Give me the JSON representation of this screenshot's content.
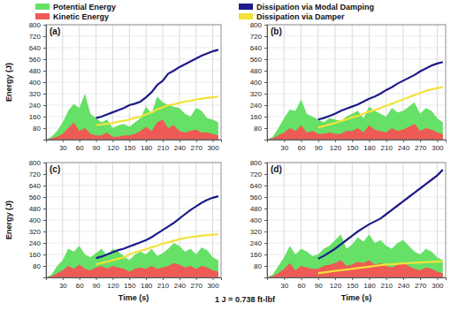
{
  "footnote": "1 J = 0.738 ft-lbf",
  "chart_data": [
    {
      "type": "line",
      "title": "(a)",
      "legend": "top",
      "grid": true,
      "y_label": "Energy (J)",
      "x": [
        0,
        10,
        20,
        30,
        40,
        50,
        60,
        70,
        80,
        90,
        100,
        110,
        120,
        130,
        140,
        150,
        160,
        170,
        180,
        190,
        200,
        210,
        220,
        230,
        240,
        250,
        260,
        270,
        280,
        290,
        300,
        310
      ],
      "xlim": [
        0,
        315
      ],
      "ylim": [
        0,
        800
      ],
      "xticks": [
        30,
        60,
        90,
        120,
        150,
        180,
        210,
        240,
        270,
        300
      ],
      "yticks": [
        80,
        160,
        240,
        320,
        400,
        480,
        560,
        640,
        720,
        800
      ],
      "series": [
        {
          "name": "Potential Energy",
          "type": "area",
          "color": "#66e066",
          "values": [
            0,
            20,
            60,
            120,
            200,
            250,
            220,
            320,
            180,
            150,
            120,
            140,
            80,
            100,
            110,
            90,
            120,
            150,
            230,
            180,
            300,
            260,
            240,
            230,
            220,
            180,
            160,
            220,
            200,
            150,
            140,
            120
          ]
        },
        {
          "name": "Kinetic Energy",
          "type": "area",
          "color": "#ee5a55",
          "values": [
            0,
            10,
            20,
            40,
            80,
            120,
            60,
            80,
            40,
            30,
            30,
            50,
            20,
            20,
            30,
            30,
            40,
            60,
            90,
            60,
            120,
            140,
            80,
            100,
            60,
            50,
            60,
            70,
            50,
            50,
            40,
            30
          ]
        },
        {
          "name": "Dissipation via Modal Damping",
          "type": "line",
          "color": "#1c1c8a",
          "values": [
            null,
            null,
            null,
            null,
            null,
            null,
            null,
            null,
            null,
            150,
            160,
            175,
            190,
            205,
            220,
            240,
            250,
            265,
            295,
            330,
            380,
            410,
            460,
            480,
            505,
            525,
            545,
            565,
            585,
            600,
            615,
            625
          ]
        },
        {
          "name": "Dissipation via Damper",
          "type": "line",
          "color": "#f2e23a",
          "values": [
            null,
            null,
            null,
            null,
            null,
            null,
            null,
            null,
            null,
            100,
            105,
            110,
            115,
            125,
            130,
            140,
            150,
            160,
            175,
            190,
            210,
            225,
            240,
            245,
            255,
            265,
            270,
            280,
            285,
            290,
            295,
            300
          ]
        }
      ]
    },
    {
      "type": "line",
      "title": "(b)",
      "grid": true,
      "x": [
        0,
        10,
        20,
        30,
        40,
        50,
        60,
        70,
        80,
        90,
        100,
        110,
        120,
        130,
        140,
        150,
        160,
        170,
        180,
        190,
        200,
        210,
        220,
        230,
        240,
        250,
        260,
        270,
        280,
        290,
        300,
        310
      ],
      "xlim": [
        0,
        315
      ],
      "ylim": [
        0,
        800
      ],
      "xticks": [
        30,
        60,
        90,
        120,
        150,
        180,
        210,
        240,
        270,
        300
      ],
      "yticks": [
        80,
        160,
        240,
        320,
        400,
        480,
        560,
        640,
        720,
        800
      ],
      "series": [
        {
          "name": "Potential Energy",
          "type": "area",
          "color": "#66e066",
          "values": [
            0,
            20,
            80,
            150,
            210,
            200,
            280,
            180,
            160,
            140,
            120,
            150,
            140,
            130,
            160,
            180,
            200,
            150,
            230,
            200,
            180,
            160,
            220,
            190,
            200,
            230,
            260,
            180,
            220,
            200,
            150,
            120
          ]
        },
        {
          "name": "Kinetic Energy",
          "type": "area",
          "color": "#ee5a55",
          "values": [
            0,
            10,
            30,
            50,
            80,
            60,
            100,
            50,
            60,
            40,
            40,
            50,
            40,
            40,
            60,
            60,
            80,
            50,
            100,
            70,
            60,
            50,
            80,
            60,
            70,
            90,
            110,
            60,
            80,
            70,
            50,
            40
          ]
        },
        {
          "name": "Dissipation via Modal Damping",
          "type": "line",
          "color": "#1c1c8a",
          "values": [
            null,
            null,
            null,
            null,
            null,
            null,
            null,
            null,
            null,
            140,
            150,
            165,
            180,
            200,
            215,
            230,
            245,
            265,
            285,
            300,
            320,
            345,
            365,
            390,
            410,
            430,
            450,
            475,
            495,
            515,
            530,
            540
          ]
        },
        {
          "name": "Dissipation via Damper",
          "type": "line",
          "color": "#f2e23a",
          "values": [
            null,
            null,
            null,
            null,
            null,
            null,
            null,
            null,
            null,
            85,
            95,
            105,
            115,
            130,
            140,
            155,
            165,
            180,
            195,
            205,
            220,
            235,
            250,
            265,
            280,
            295,
            310,
            325,
            340,
            350,
            358,
            365
          ]
        }
      ]
    },
    {
      "type": "line",
      "title": "(c)",
      "grid": true,
      "y_label": "Energy (J)",
      "x_label": "Time (s)",
      "x": [
        0,
        10,
        20,
        30,
        40,
        50,
        60,
        70,
        80,
        90,
        100,
        110,
        120,
        130,
        140,
        150,
        160,
        170,
        180,
        190,
        200,
        210,
        220,
        230,
        240,
        250,
        260,
        270,
        280,
        290,
        300,
        310
      ],
      "xlim": [
        0,
        315
      ],
      "ylim": [
        0,
        800
      ],
      "xticks": [
        30,
        60,
        90,
        120,
        150,
        180,
        210,
        240,
        270,
        300
      ],
      "yticks": [
        80,
        160,
        240,
        320,
        400,
        480,
        560,
        640,
        720,
        800
      ],
      "series": [
        {
          "name": "Potential Energy",
          "type": "area",
          "color": "#66e066",
          "values": [
            0,
            20,
            80,
            120,
            200,
            180,
            220,
            160,
            140,
            170,
            200,
            150,
            200,
            180,
            150,
            120,
            160,
            180,
            160,
            200,
            150,
            170,
            200,
            240,
            220,
            180,
            200,
            160,
            210,
            190,
            140,
            120
          ]
        },
        {
          "name": "Kinetic Energy",
          "type": "area",
          "color": "#ee5a55",
          "values": [
            0,
            10,
            30,
            50,
            80,
            60,
            90,
            60,
            50,
            70,
            80,
            60,
            80,
            70,
            60,
            40,
            60,
            70,
            60,
            80,
            60,
            70,
            80,
            100,
            90,
            70,
            80,
            60,
            80,
            70,
            50,
            40
          ]
        },
        {
          "name": "Dissipation via Modal Damping",
          "type": "line",
          "color": "#1c1c8a",
          "values": [
            null,
            null,
            null,
            null,
            null,
            null,
            null,
            null,
            null,
            135,
            145,
            160,
            175,
            190,
            200,
            215,
            230,
            245,
            260,
            280,
            305,
            330,
            355,
            380,
            410,
            440,
            470,
            495,
            520,
            540,
            555,
            565
          ]
        },
        {
          "name": "Dissipation via Damper",
          "type": "line",
          "color": "#f2e23a",
          "values": [
            null,
            null,
            null,
            null,
            null,
            null,
            null,
            null,
            null,
            90,
            100,
            110,
            120,
            130,
            140,
            160,
            175,
            185,
            195,
            210,
            220,
            235,
            245,
            255,
            265,
            275,
            280,
            285,
            290,
            295,
            298,
            300
          ]
        }
      ]
    },
    {
      "type": "line",
      "title": "(d)",
      "grid": true,
      "x_label": "Time (s)",
      "x": [
        0,
        10,
        20,
        30,
        40,
        50,
        60,
        70,
        80,
        90,
        100,
        110,
        120,
        130,
        140,
        150,
        160,
        170,
        180,
        190,
        200,
        210,
        220,
        230,
        240,
        250,
        260,
        270,
        280,
        290,
        300,
        310
      ],
      "xlim": [
        0,
        315
      ],
      "ylim": [
        0,
        800
      ],
      "xticks": [
        30,
        60,
        90,
        120,
        150,
        180,
        210,
        240,
        270,
        300
      ],
      "yticks": [
        80,
        160,
        240,
        320,
        400,
        480,
        560,
        640,
        720,
        800
      ],
      "series": [
        {
          "name": "Potential Energy",
          "type": "area",
          "color": "#66e066",
          "values": [
            0,
            20,
            80,
            140,
            220,
            160,
            200,
            180,
            150,
            160,
            200,
            220,
            260,
            300,
            200,
            230,
            280,
            250,
            300,
            240,
            260,
            220,
            200,
            240,
            260,
            220,
            180,
            160,
            200,
            180,
            140,
            120
          ]
        },
        {
          "name": "Kinetic Energy",
          "type": "area",
          "color": "#ee5a55",
          "values": [
            0,
            10,
            30,
            60,
            100,
            50,
            80,
            70,
            60,
            60,
            80,
            90,
            100,
            120,
            80,
            90,
            110,
            100,
            120,
            90,
            100,
            80,
            70,
            90,
            100,
            80,
            60,
            50,
            70,
            60,
            40,
            30
          ]
        },
        {
          "name": "Dissipation via Modal Damping",
          "type": "line",
          "color": "#1c1c8a",
          "values": [
            null,
            null,
            null,
            null,
            null,
            null,
            null,
            null,
            null,
            130,
            150,
            175,
            200,
            230,
            260,
            290,
            320,
            345,
            370,
            390,
            410,
            440,
            470,
            500,
            530,
            560,
            590,
            620,
            650,
            680,
            710,
            750
          ]
        },
        {
          "name": "Dissipation via Damper",
          "type": "line",
          "color": "#f2e23a",
          "values": [
            null,
            null,
            null,
            null,
            null,
            null,
            null,
            null,
            null,
            30,
            35,
            40,
            45,
            50,
            55,
            60,
            65,
            70,
            75,
            80,
            85,
            90,
            92,
            95,
            98,
            100,
            102,
            104,
            106,
            108,
            110,
            112
          ]
        }
      ]
    }
  ]
}
